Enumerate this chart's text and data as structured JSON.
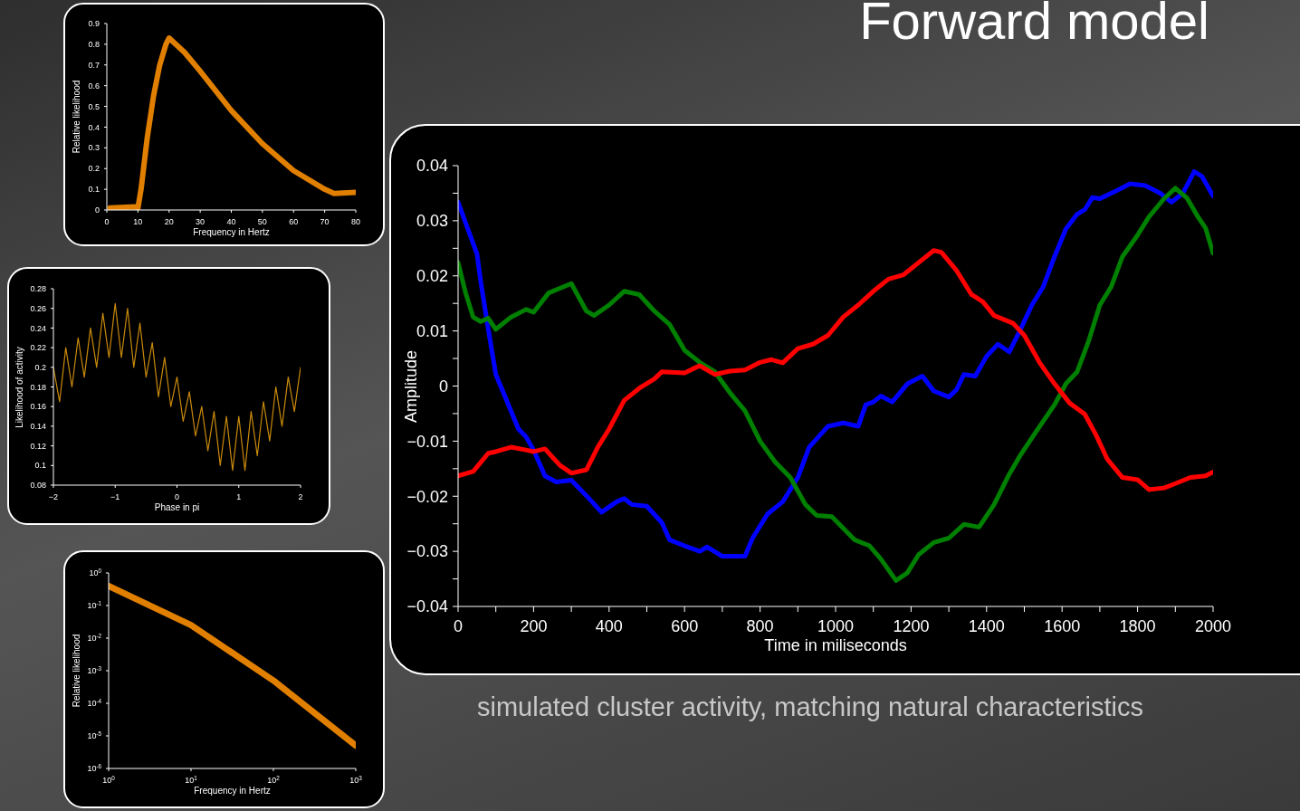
{
  "chart_data": [
    {
      "type": "line",
      "title": "Forward model",
      "xlabel": "Time in miliseconds",
      "ylabel": "Amplitude",
      "annotations": [
        "simulated cluster activity, matching natural characteristics"
      ],
      "xlim": [
        0,
        2000
      ],
      "xticks": [
        0,
        {
          "value": 100,
          "label": null
        },
        200,
        {
          "value": 300,
          "label": null
        },
        400,
        {
          "value": 500,
          "label": null
        },
        600,
        {
          "value": 700,
          "label": null
        },
        800,
        {
          "value": 900,
          "label": null
        },
        1000,
        {
          "value": 1100,
          "label": null
        },
        1200,
        {
          "value": 1300,
          "label": null
        },
        1400,
        {
          "value": 1500,
          "label": null
        },
        1600,
        {
          "value": 1700,
          "label": null
        },
        1800,
        {
          "value": 1900,
          "label": null
        },
        2000
      ],
      "ylim": [
        -0.04,
        0.04
      ],
      "yticks": [
        {
          "value": -0.04,
          "label": "−0.04"
        },
        {
          "value": -0.035,
          "label": null
        },
        {
          "value": -0.03,
          "label": "−0.03"
        },
        {
          "value": -0.025,
          "label": null
        },
        {
          "value": -0.02,
          "label": "−0.02"
        },
        {
          "value": -0.015,
          "label": null
        },
        {
          "value": -0.01,
          "label": "−0.01"
        },
        {
          "value": -0.005,
          "label": null
        },
        0,
        {
          "value": 0.005,
          "label": null
        },
        0.01,
        {
          "value": 0.015,
          "label": null
        },
        0.02,
        {
          "value": 0.025,
          "label": null
        },
        0.03,
        {
          "value": 0.035,
          "label": null
        },
        0.04
      ],
      "series": [
        {
          "color": "#0000ff",
          "x": [
            0,
            20,
            50,
            60,
            80,
            100,
            120,
            160,
            180,
            200,
            230,
            260,
            300,
            340,
            380,
            420,
            440,
            460,
            500,
            540,
            560,
            600,
            640,
            660,
            700,
            760,
            780,
            820,
            860,
            900,
            930,
            980,
            1020,
            1060,
            1080,
            1100,
            1120,
            1150,
            1190,
            1230,
            1260,
            1300,
            1320,
            1340,
            1370,
            1400,
            1430,
            1460,
            1490,
            1520,
            1550,
            1580,
            1610,
            1640,
            1660,
            1680,
            1700,
            1740,
            1780,
            1820,
            1860,
            1890,
            1920,
            1950,
            1970,
            2000
          ],
          "values": [
            0.0334,
            0.0296,
            0.024,
            0.019,
            0.0103,
            0.0021,
            -0.0012,
            -0.0078,
            -0.0092,
            -0.0116,
            -0.0163,
            -0.0174,
            -0.0171,
            -0.0199,
            -0.0229,
            -0.021,
            -0.0204,
            -0.0215,
            -0.0218,
            -0.0248,
            -0.0279,
            -0.029,
            -0.03,
            -0.0292,
            -0.0309,
            -0.0309,
            -0.0276,
            -0.0232,
            -0.021,
            -0.0166,
            -0.0111,
            -0.0073,
            -0.0067,
            -0.0073,
            -0.0034,
            -0.0029,
            -0.0018,
            -0.0029,
            0.0004,
            0.0018,
            -0.0009,
            -0.002,
            -0.0007,
            0.0021,
            0.0018,
            0.0054,
            0.0076,
            0.0062,
            0.0103,
            0.0147,
            0.018,
            0.0235,
            0.0285,
            0.0312,
            0.032,
            0.0342,
            0.034,
            0.0353,
            0.0367,
            0.0364,
            0.035,
            0.0334,
            0.035,
            0.0389,
            0.0381,
            0.0345
          ]
        },
        {
          "color": "#008000",
          "x": [
            0,
            20,
            40,
            60,
            80,
            100,
            140,
            180,
            200,
            240,
            300,
            340,
            360,
            400,
            440,
            480,
            520,
            560,
            600,
            640,
            680,
            720,
            760,
            800,
            840,
            880,
            920,
            950,
            990,
            1050,
            1090,
            1120,
            1160,
            1190,
            1220,
            1260,
            1300,
            1340,
            1380,
            1420,
            1460,
            1490,
            1530,
            1580,
            1610,
            1640,
            1670,
            1700,
            1730,
            1760,
            1800,
            1830,
            1870,
            1900,
            1930,
            1960,
            1980,
            2000
          ],
          "values": [
            0.0224,
            0.0169,
            0.0125,
            0.0117,
            0.0123,
            0.0103,
            0.0125,
            0.0139,
            0.0134,
            0.0169,
            0.0186,
            0.0136,
            0.0128,
            0.0147,
            0.0172,
            0.0166,
            0.0136,
            0.0112,
            0.0065,
            0.0043,
            0.0026,
            -0.0012,
            -0.0045,
            -0.01,
            -0.0138,
            -0.0166,
            -0.0215,
            -0.0235,
            -0.0237,
            -0.0279,
            -0.029,
            -0.0314,
            -0.0353,
            -0.0339,
            -0.0306,
            -0.0284,
            -0.0276,
            -0.0251,
            -0.0256,
            -0.0215,
            -0.016,
            -0.0125,
            -0.0084,
            -0.0034,
            0.0004,
            0.0026,
            0.0081,
            0.0147,
            0.018,
            0.0235,
            0.0274,
            0.0307,
            0.034,
            0.0359,
            0.0342,
            0.0307,
            0.0287,
            0.0241
          ]
        },
        {
          "color": "#ff0000",
          "x": [
            0,
            40,
            80,
            100,
            140,
            180,
            200,
            230,
            270,
            300,
            340,
            370,
            400,
            440,
            480,
            520,
            540,
            600,
            640,
            680,
            720,
            760,
            800,
            830,
            860,
            900,
            940,
            980,
            1020,
            1060,
            1100,
            1140,
            1180,
            1220,
            1260,
            1280,
            1320,
            1360,
            1390,
            1420,
            1470,
            1500,
            1540,
            1580,
            1620,
            1660,
            1690,
            1720,
            1760,
            1800,
            1830,
            1870,
            1900,
            1940,
            1980,
            2000
          ],
          "values": [
            -0.0163,
            -0.0155,
            -0.0122,
            -0.0119,
            -0.0111,
            -0.0116,
            -0.0119,
            -0.0114,
            -0.0144,
            -0.0158,
            -0.0152,
            -0.0111,
            -0.0078,
            -0.0026,
            -0.0004,
            0.0013,
            0.0026,
            0.0024,
            0.0037,
            0.0021,
            0.0027,
            0.0029,
            0.0043,
            0.0048,
            0.0042,
            0.0068,
            0.0076,
            0.0092,
            0.0125,
            0.0147,
            0.0172,
            0.0194,
            0.0202,
            0.0224,
            0.0246,
            0.0243,
            0.021,
            0.0166,
            0.0153,
            0.0128,
            0.0114,
            0.0092,
            0.0043,
            0.0004,
            -0.0031,
            -0.0051,
            -0.0089,
            -0.0133,
            -0.0166,
            -0.017,
            -0.0188,
            -0.0185,
            -0.0177,
            -0.0166,
            -0.0163,
            -0.0156
          ]
        }
      ]
    },
    {
      "type": "line",
      "xlabel": "Frequency in Hertz",
      "ylabel": "Relative likelihood",
      "xlim": [
        0,
        80
      ],
      "xticks": [
        0,
        10,
        20,
        30,
        40,
        50,
        60,
        70,
        80
      ],
      "ylim": [
        0,
        0.9
      ],
      "yticks": [
        0,
        0.1,
        0.2,
        0.3,
        0.4,
        0.5,
        0.6,
        0.7,
        0.8,
        0.9
      ],
      "series": [
        {
          "color": "#e07f00",
          "x": [
            1,
            9,
            10,
            11,
            13,
            15,
            17,
            19,
            20,
            25,
            30,
            40,
            50,
            60,
            70,
            73,
            80
          ],
          "values": [
            0.01,
            0.015,
            0.01,
            0.1,
            0.35,
            0.55,
            0.7,
            0.8,
            0.83,
            0.76,
            0.67,
            0.48,
            0.32,
            0.19,
            0.1,
            0.08,
            0.085
          ]
        }
      ]
    },
    {
      "type": "line",
      "xlabel": "Phase in pi",
      "ylabel": "Likelihood of activity",
      "xlim": [
        -2,
        2
      ],
      "xticks": [
        {
          "value": -2,
          "label": "−2"
        },
        {
          "value": -1,
          "label": "−1"
        },
        0,
        1,
        2
      ],
      "ylim": [
        0.08,
        0.28
      ],
      "yticks": [
        0.08,
        0.1,
        0.12,
        0.14,
        0.16,
        0.18,
        0.2,
        0.22,
        0.24,
        0.26,
        0.28
      ],
      "series": [
        {
          "color": "#c98a0b",
          "x": [
            -2,
            -1.9,
            -1.8,
            -1.7,
            -1.6,
            -1.5,
            -1.4,
            -1.3,
            -1.2,
            -1.1,
            -1,
            -0.9,
            -0.8,
            -0.7,
            -0.6,
            -0.5,
            -0.4,
            -0.3,
            -0.2,
            -0.1,
            0,
            0.1,
            0.2,
            0.3,
            0.4,
            0.5,
            0.6,
            0.7,
            0.8,
            0.9,
            1,
            1.1,
            1.2,
            1.3,
            1.4,
            1.5,
            1.6,
            1.7,
            1.8,
            1.9,
            2
          ],
          "values": [
            0.2,
            0.165,
            0.22,
            0.18,
            0.23,
            0.19,
            0.24,
            0.2,
            0.255,
            0.21,
            0.265,
            0.21,
            0.26,
            0.2,
            0.245,
            0.19,
            0.225,
            0.17,
            0.21,
            0.16,
            0.19,
            0.145,
            0.175,
            0.13,
            0.16,
            0.115,
            0.155,
            0.1,
            0.15,
            0.095,
            0.15,
            0.095,
            0.155,
            0.11,
            0.165,
            0.125,
            0.18,
            0.14,
            0.19,
            0.155,
            0.2
          ]
        }
      ]
    },
    {
      "type": "line",
      "log": "xy",
      "xlabel": "Frequency in Hertz",
      "ylabel": "Relative likelihood",
      "xlim": [
        1,
        1000
      ],
      "xticks": [
        {
          "value": 1,
          "label": "10$^{0}$"
        },
        {
          "value": 10,
          "label": "10$^{1}$"
        },
        {
          "value": 100,
          "label": "10$^{2}$"
        },
        {
          "value": 1000,
          "label": "10$^{3}$"
        }
      ],
      "ylim": [
        1e-06,
        1
      ],
      "yticks": [
        {
          "value": 1e-06,
          "label": "10$^{-6}$"
        },
        {
          "value": 1e-05,
          "label": "10$^{-5}$"
        },
        {
          "value": 0.0001,
          "label": "10$^{-4}$"
        },
        {
          "value": 0.001,
          "label": "10$^{-3}$"
        },
        {
          "value": 0.01,
          "label": "10$^{-2}$"
        },
        {
          "value": 0.1,
          "label": "10$^{-1}$"
        },
        {
          "value": 1,
          "label": "10$^{0}$"
        }
      ],
      "series": [
        {
          "color": "#e07f00",
          "x": [
            1,
            10,
            100,
            1000
          ],
          "values": [
            0.4,
            0.025,
            0.0005,
            5e-06
          ]
        }
      ]
    }
  ]
}
